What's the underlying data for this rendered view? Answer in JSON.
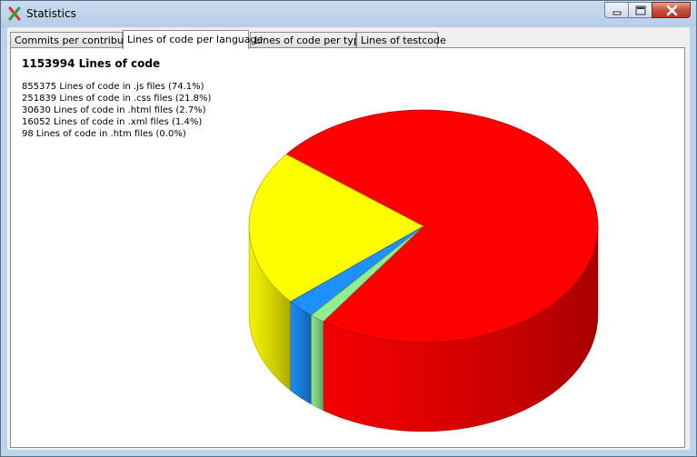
{
  "window": {
    "title": "Statistics",
    "app_icon": "gitextensions-x-icon",
    "controls": [
      "minimize-icon",
      "maximize-icon",
      "close-icon"
    ]
  },
  "tabs": [
    {
      "label": "Commits per contributor",
      "active": false
    },
    {
      "label": "Lines of code per language",
      "active": true
    },
    {
      "label": "Lines of code per type",
      "active": false
    },
    {
      "label": "Lines of testcode",
      "active": false
    }
  ],
  "summary": {
    "total_text": "1153994 Lines of code"
  },
  "legend": [
    "855375 Lines of code in .js files (74.1%)",
    "251839 Lines of code in .css files (21.8%)",
    "30630 Lines of code in .html files (2.7%)",
    "16052 Lines of code in .xml files (1.4%)",
    "98 Lines of code in .htm files (0.0%)"
  ],
  "chart_data": {
    "type": "pie",
    "categories": [
      ".js",
      ".css",
      ".html",
      ".xml",
      ".htm"
    ],
    "values": [
      855375,
      251839,
      30630,
      16052,
      98
    ],
    "percentages": [
      74.1,
      21.8,
      2.7,
      1.4,
      0.0
    ],
    "colors": [
      "#ff0000",
      "#ffff00",
      "#1e90ff",
      "#90ee90",
      "#b0b0b0"
    ],
    "style": "3d",
    "title": "1153994 Lines of code"
  }
}
